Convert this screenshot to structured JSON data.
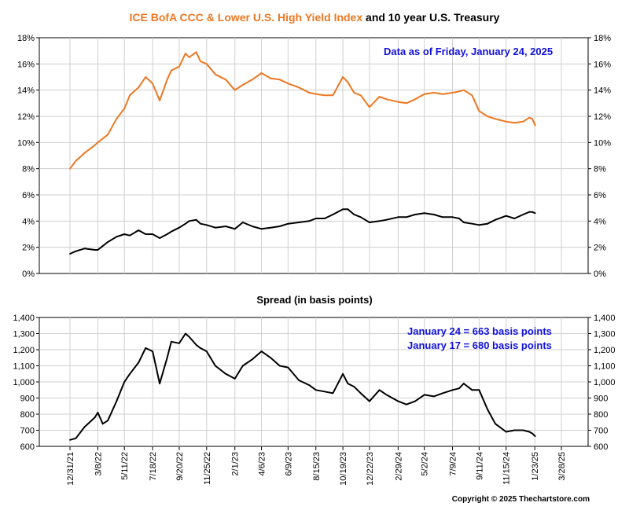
{
  "title": {
    "part1": "ICE BofA CCC & Lower U.S. High Yield Index",
    "part2": " and 10 year U.S. Treasury"
  },
  "colors": {
    "hy": "#ee7722",
    "treasury": "#000000",
    "annotation": "#1010dd",
    "plot_bg": "#ffffff",
    "frame": "#000000"
  },
  "top_panel": {
    "annotation": "Data as of Friday, January 24, 2025",
    "y_ticks": [
      "0%",
      "2%",
      "4%",
      "6%",
      "8%",
      "10%",
      "12%",
      "14%",
      "16%",
      "18%"
    ]
  },
  "bottom_panel": {
    "title": "Spread (in basis points)",
    "annotation_line1": "January 24 = 663 basis points",
    "annotation_line2": "January 17 = 680 basis points",
    "y_ticks": [
      "600",
      "700",
      "800",
      "900",
      "1,000",
      "1,100",
      "1,200",
      "1,300",
      "1,400"
    ]
  },
  "x_ticks": [
    "12/31/21",
    "3/8/22",
    "5/11/22",
    "7/18/22",
    "9/20/22",
    "11/25/22",
    "2/1/23",
    "4/6/23",
    "6/9/23",
    "8/15/23",
    "10/19/23",
    "12/22/23",
    "2/29/24",
    "5/2/24",
    "7/9/24",
    "9/11/24",
    "11/15/24",
    "1/23/25",
    "3/28/25"
  ],
  "copyright": "Copyright © 2025 Thechartstore.com",
  "chart_data": [
    {
      "type": "line",
      "title": "ICE BofA CCC & Lower U.S. High Yield Index and 10 year U.S. Treasury",
      "ylim": [
        0,
        18
      ],
      "y_unit": "%",
      "x_ticks": [
        "12/31/21",
        "3/8/22",
        "5/11/22",
        "7/18/22",
        "9/20/22",
        "11/25/22",
        "2/1/23",
        "4/6/23",
        "6/9/23",
        "8/15/23",
        "10/19/23",
        "12/22/23",
        "2/29/24",
        "5/2/24",
        "7/9/24",
        "9/11/24",
        "11/15/24",
        "1/23/25",
        "3/28/25"
      ],
      "grid": true,
      "series": [
        {
          "name": "ICE BofA CCC & Lower U.S. High Yield Index",
          "color": "#ee7722",
          "x": [
            "12/31/21",
            "1/14/22",
            "2/4/22",
            "3/1/22",
            "3/8/22",
            "4/1/22",
            "4/22/22",
            "5/11/22",
            "5/24/22",
            "6/14/22",
            "7/1/22",
            "7/18/22",
            "8/4/22",
            "8/22/22",
            "9/1/22",
            "9/20/22",
            "10/5/22",
            "10/14/22",
            "10/31/22",
            "11/10/22",
            "11/25/22",
            "12/16/22",
            "1/10/23",
            "2/1/23",
            "2/20/23",
            "3/15/23",
            "4/6/23",
            "4/28/23",
            "5/20/23",
            "6/9/23",
            "7/5/23",
            "7/30/23",
            "8/15/23",
            "9/5/23",
            "9/25/23",
            "10/19/23",
            "10/31/23",
            "11/15/23",
            "12/1/23",
            "12/22/23",
            "1/15/24",
            "2/1/24",
            "2/29/24",
            "3/20/24",
            "4/10/24",
            "5/2/24",
            "5/25/24",
            "6/15/24",
            "7/9/24",
            "7/25/24",
            "8/5/24",
            "8/25/24",
            "9/11/24",
            "10/1/24",
            "10/20/24",
            "11/15/24",
            "12/5/24",
            "12/26/24",
            "1/10/25",
            "1/17/25",
            "1/24/25"
          ],
          "values": [
            8.0,
            8.6,
            9.2,
            9.8,
            10.0,
            10.6,
            11.8,
            12.6,
            13.6,
            14.2,
            15.0,
            14.5,
            13.2,
            14.8,
            15.5,
            15.8,
            16.8,
            16.5,
            16.9,
            16.2,
            16.0,
            15.2,
            14.8,
            14.0,
            14.4,
            14.8,
            15.3,
            14.9,
            14.8,
            14.5,
            14.2,
            13.8,
            13.7,
            13.6,
            13.6,
            15.0,
            14.6,
            13.8,
            13.6,
            12.7,
            13.5,
            13.3,
            13.1,
            13.0,
            13.3,
            13.7,
            13.8,
            13.7,
            13.8,
            13.9,
            14.0,
            13.6,
            12.4,
            12.0,
            11.8,
            11.6,
            11.5,
            11.6,
            11.9,
            11.8,
            11.3
          ]
        },
        {
          "name": "10 year U.S. Treasury",
          "color": "#000000",
          "x": [
            "12/31/21",
            "1/14/22",
            "2/4/22",
            "3/1/22",
            "3/8/22",
            "4/1/22",
            "4/22/22",
            "5/11/22",
            "5/24/22",
            "6/14/22",
            "7/1/22",
            "7/18/22",
            "8/4/22",
            "8/22/22",
            "9/1/22",
            "9/20/22",
            "10/5/22",
            "10/14/22",
            "10/31/22",
            "11/10/22",
            "11/25/22",
            "12/16/22",
            "1/10/23",
            "2/1/23",
            "2/20/23",
            "3/15/23",
            "4/6/23",
            "4/28/23",
            "5/20/23",
            "6/9/23",
            "7/5/23",
            "7/30/23",
            "8/15/23",
            "9/5/23",
            "9/25/23",
            "10/19/23",
            "10/31/23",
            "11/15/23",
            "12/1/23",
            "12/22/23",
            "1/15/24",
            "2/1/24",
            "2/29/24",
            "3/20/24",
            "4/10/24",
            "5/2/24",
            "5/25/24",
            "6/15/24",
            "7/9/24",
            "7/25/24",
            "8/5/24",
            "8/25/24",
            "9/11/24",
            "10/1/24",
            "10/20/24",
            "11/15/24",
            "12/5/24",
            "12/26/24",
            "1/10/25",
            "1/17/25",
            "1/24/25"
          ],
          "values": [
            1.5,
            1.7,
            1.9,
            1.8,
            1.8,
            2.4,
            2.8,
            3.0,
            2.9,
            3.3,
            3.0,
            3.0,
            2.7,
            3.0,
            3.2,
            3.5,
            3.8,
            4.0,
            4.1,
            3.8,
            3.7,
            3.5,
            3.6,
            3.4,
            3.9,
            3.6,
            3.4,
            3.5,
            3.6,
            3.8,
            3.9,
            4.0,
            4.2,
            4.2,
            4.5,
            4.9,
            4.9,
            4.5,
            4.3,
            3.9,
            4.0,
            4.1,
            4.3,
            4.3,
            4.5,
            4.6,
            4.5,
            4.3,
            4.3,
            4.2,
            3.9,
            3.8,
            3.7,
            3.8,
            4.1,
            4.4,
            4.2,
            4.5,
            4.7,
            4.7,
            4.6
          ]
        }
      ]
    },
    {
      "type": "line",
      "title": "Spread (in basis points)",
      "ylim": [
        600,
        1400
      ],
      "x_ticks": [
        "12/31/21",
        "3/8/22",
        "5/11/22",
        "7/18/22",
        "9/20/22",
        "11/25/22",
        "2/1/23",
        "4/6/23",
        "6/9/23",
        "8/15/23",
        "10/19/23",
        "12/22/23",
        "2/29/24",
        "5/2/24",
        "7/9/24",
        "9/11/24",
        "11/15/24",
        "1/23/25",
        "3/28/25"
      ],
      "grid": true,
      "series": [
        {
          "name": "Spread",
          "color": "#000000",
          "x": [
            "12/31/21",
            "1/14/22",
            "2/4/22",
            "3/1/22",
            "3/8/22",
            "3/20/22",
            "4/1/22",
            "4/22/22",
            "5/11/22",
            "5/24/22",
            "6/14/22",
            "7/1/22",
            "7/18/22",
            "8/4/22",
            "8/22/22",
            "9/1/22",
            "9/20/22",
            "10/5/22",
            "10/14/22",
            "10/31/22",
            "11/10/22",
            "11/25/22",
            "12/16/22",
            "1/10/23",
            "2/1/23",
            "2/20/23",
            "3/15/23",
            "4/6/23",
            "4/28/23",
            "5/20/23",
            "6/9/23",
            "7/5/23",
            "7/30/23",
            "8/15/23",
            "9/5/23",
            "9/25/23",
            "10/19/23",
            "10/31/23",
            "11/15/23",
            "12/1/23",
            "12/22/23",
            "1/15/24",
            "2/1/24",
            "2/29/24",
            "3/20/24",
            "4/10/24",
            "5/2/24",
            "5/25/24",
            "6/15/24",
            "7/9/24",
            "7/25/24",
            "8/5/24",
            "8/25/24",
            "9/11/24",
            "10/1/24",
            "10/20/24",
            "11/15/24",
            "12/5/24",
            "12/26/24",
            "1/10/25",
            "1/17/25",
            "1/24/25"
          ],
          "values": [
            640,
            650,
            720,
            780,
            810,
            740,
            760,
            880,
            1000,
            1050,
            1120,
            1210,
            1190,
            990,
            1150,
            1250,
            1240,
            1300,
            1280,
            1230,
            1210,
            1190,
            1100,
            1050,
            1020,
            1100,
            1140,
            1190,
            1150,
            1100,
            1090,
            1010,
            980,
            950,
            940,
            930,
            1050,
            990,
            970,
            930,
            880,
            950,
            920,
            880,
            860,
            880,
            920,
            910,
            930,
            950,
            960,
            990,
            950,
            950,
            830,
            740,
            690,
            700,
            700,
            690,
            680,
            663
          ]
        }
      ]
    }
  ]
}
